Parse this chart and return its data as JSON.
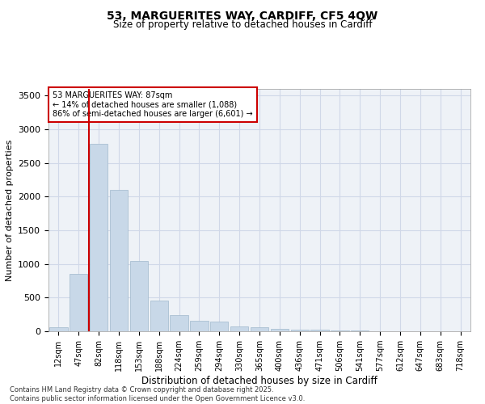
{
  "title_line1": "53, MARGUERITES WAY, CARDIFF, CF5 4QW",
  "title_line2": "Size of property relative to detached houses in Cardiff",
  "xlabel": "Distribution of detached houses by size in Cardiff",
  "ylabel": "Number of detached properties",
  "bar_color": "#c8d8e8",
  "bar_edge_color": "#a0b8cc",
  "grid_color": "#d0d8e8",
  "background_color": "#eef2f7",
  "red_line_color": "#cc0000",
  "annotation_box_color": "#cc0000",
  "categories": [
    "12sqm",
    "47sqm",
    "82sqm",
    "118sqm",
    "153sqm",
    "188sqm",
    "224sqm",
    "259sqm",
    "294sqm",
    "330sqm",
    "365sqm",
    "400sqm",
    "436sqm",
    "471sqm",
    "506sqm",
    "541sqm",
    "577sqm",
    "612sqm",
    "647sqm",
    "683sqm",
    "718sqm"
  ],
  "values": [
    55,
    850,
    2780,
    2100,
    1040,
    460,
    245,
    155,
    150,
    70,
    55,
    40,
    25,
    20,
    10,
    8,
    5,
    3,
    2,
    1,
    1
  ],
  "property_sqm": 87,
  "red_line_x": 1.5,
  "annotation_title": "53 MARGUERITES WAY: 87sqm",
  "annotation_line1": "← 14% of detached houses are smaller (1,088)",
  "annotation_line2": "86% of semi-detached houses are larger (6,601) →",
  "ylim": [
    0,
    3600
  ],
  "yticks": [
    0,
    500,
    1000,
    1500,
    2000,
    2500,
    3000,
    3500
  ],
  "footer_line1": "Contains HM Land Registry data © Crown copyright and database right 2025.",
  "footer_line2": "Contains public sector information licensed under the Open Government Licence v3.0."
}
